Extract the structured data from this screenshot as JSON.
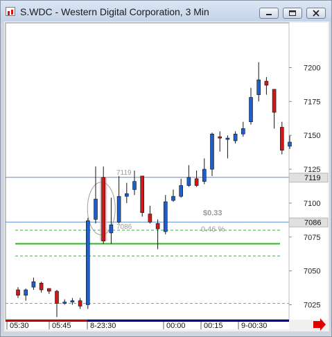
{
  "window": {
    "title": "S.WDC - Western Digital Corporation, 3 Min",
    "buttons": [
      "minimize",
      "maximize",
      "close"
    ]
  },
  "chart_data": {
    "type": "candlestick",
    "title": "S.WDC - Western Digital Corporation, 3 Min",
    "y_ticks": [
      "7200",
      "7175",
      "7150",
      "7125",
      "7100",
      "7075",
      "7050",
      "7025"
    ],
    "y_tick_values": [
      72.0,
      71.75,
      71.5,
      71.25,
      71.0,
      70.75,
      70.5,
      70.25
    ],
    "x_ticks": [
      "05:30",
      "05:45",
      "8-23:30",
      "00:00",
      "00:15",
      "9-00:30"
    ],
    "price_tags": [
      {
        "label": "7119",
        "value": 71.19,
        "color": "#5b8ed6"
      },
      {
        "label": "7086",
        "value": 70.86,
        "color": "#5b8ed6"
      }
    ],
    "annotations": {
      "high_label": "7119",
      "low_label": "7086",
      "change_value": "$0.33",
      "change_pct": "0.46 %"
    },
    "ylim": [
      70.14,
      72.33
    ],
    "horizontal_lines": [
      {
        "value": 71.19,
        "color": "#5b8ed6",
        "style": "solid"
      },
      {
        "value": 70.86,
        "color": "#5b8ed6",
        "style": "solid"
      },
      {
        "value": 70.8,
        "color": "#2db82d",
        "style": "dashed"
      },
      {
        "value": 70.7,
        "color": "#1fbf1f",
        "style": "solid"
      },
      {
        "value": 70.61,
        "color": "#2db82d",
        "style": "dashed"
      },
      {
        "value": 70.26,
        "color": "#999999",
        "style": "dashed"
      }
    ],
    "candles": [
      {
        "o": 70.36,
        "h": 70.38,
        "l": 70.3,
        "c": 70.32,
        "color": "red"
      },
      {
        "o": 70.32,
        "h": 70.37,
        "l": 70.28,
        "c": 70.36,
        "color": "blue"
      },
      {
        "o": 70.38,
        "h": 70.45,
        "l": 70.36,
        "c": 70.42,
        "color": "blue"
      },
      {
        "o": 70.41,
        "h": 70.42,
        "l": 70.34,
        "c": 70.36,
        "color": "red"
      },
      {
        "o": 70.37,
        "h": 70.37,
        "l": 70.33,
        "c": 70.35,
        "color": "red"
      },
      {
        "o": 70.35,
        "h": 70.36,
        "l": 70.16,
        "c": 70.26,
        "color": "red"
      },
      {
        "o": 70.26,
        "h": 70.29,
        "l": 70.25,
        "c": 70.27,
        "color": "blue"
      },
      {
        "o": 70.27,
        "h": 70.3,
        "l": 70.25,
        "c": 70.28,
        "color": "blue"
      },
      {
        "o": 70.28,
        "h": 70.3,
        "l": 70.22,
        "c": 70.24,
        "color": "red"
      },
      {
        "o": 70.25,
        "h": 70.89,
        "l": 70.22,
        "c": 70.87,
        "color": "blue"
      },
      {
        "o": 70.88,
        "h": 71.27,
        "l": 70.85,
        "c": 71.03,
        "color": "blue"
      },
      {
        "o": 71.19,
        "h": 71.27,
        "l": 70.7,
        "c": 70.72,
        "color": "red"
      },
      {
        "o": 70.78,
        "h": 71.04,
        "l": 70.7,
        "c": 70.84,
        "color": "blue"
      },
      {
        "o": 70.86,
        "h": 71.2,
        "l": 70.85,
        "c": 71.05,
        "color": "blue"
      },
      {
        "o": 71.05,
        "h": 71.15,
        "l": 71.0,
        "c": 71.07,
        "color": "blue"
      },
      {
        "o": 71.1,
        "h": 71.24,
        "l": 71.06,
        "c": 71.16,
        "color": "blue"
      },
      {
        "o": 71.2,
        "h": 71.2,
        "l": 70.9,
        "c": 70.93,
        "color": "red"
      },
      {
        "o": 70.92,
        "h": 70.98,
        "l": 70.85,
        "c": 70.86,
        "color": "red"
      },
      {
        "o": 70.85,
        "h": 70.88,
        "l": 70.66,
        "c": 70.81,
        "color": "red"
      },
      {
        "o": 70.79,
        "h": 71.06,
        "l": 70.77,
        "c": 71.01,
        "color": "blue"
      },
      {
        "o": 71.02,
        "h": 71.1,
        "l": 71.01,
        "c": 71.05,
        "color": "blue"
      },
      {
        "o": 71.05,
        "h": 71.18,
        "l": 71.04,
        "c": 71.13,
        "color": "blue"
      },
      {
        "o": 71.13,
        "h": 71.28,
        "l": 71.12,
        "c": 71.19,
        "color": "blue"
      },
      {
        "o": 71.18,
        "h": 71.24,
        "l": 71.12,
        "c": 71.13,
        "color": "red"
      },
      {
        "o": 71.16,
        "h": 71.33,
        "l": 71.14,
        "c": 71.25,
        "color": "blue"
      },
      {
        "o": 71.25,
        "h": 71.52,
        "l": 71.2,
        "c": 71.51,
        "color": "blue"
      },
      {
        "o": 71.49,
        "h": 71.53,
        "l": 71.38,
        "c": 71.48,
        "color": "red"
      },
      {
        "o": 71.47,
        "h": 71.5,
        "l": 71.33,
        "c": 71.48,
        "color": "blue"
      },
      {
        "o": 71.46,
        "h": 71.53,
        "l": 71.44,
        "c": 71.51,
        "color": "blue"
      },
      {
        "o": 71.51,
        "h": 71.6,
        "l": 71.49,
        "c": 71.55,
        "color": "blue"
      },
      {
        "o": 71.6,
        "h": 71.85,
        "l": 71.58,
        "c": 71.78,
        "color": "blue"
      },
      {
        "o": 71.8,
        "h": 72.04,
        "l": 71.75,
        "c": 71.91,
        "color": "blue"
      },
      {
        "o": 71.9,
        "h": 71.93,
        "l": 71.8,
        "c": 71.87,
        "color": "red"
      },
      {
        "o": 71.84,
        "h": 71.84,
        "l": 71.55,
        "c": 71.67,
        "color": "red"
      },
      {
        "o": 71.56,
        "h": 71.6,
        "l": 71.36,
        "c": 71.39,
        "color": "red"
      },
      {
        "o": 71.42,
        "h": 71.5,
        "l": 71.4,
        "c": 71.45,
        "color": "blue"
      }
    ],
    "x_axis_colors": {
      "left": "#cc0000",
      "right": "#000099"
    }
  },
  "colors": {
    "up_candle": "#1f5fc8",
    "down_candle": "#cc1a1a",
    "highlight": "#e8b8c0",
    "scroll_arrow": "#e00000"
  },
  "icons": {
    "window_icon": "chart-window-icon",
    "scroll_right": "scroll-right-arrow-icon"
  }
}
